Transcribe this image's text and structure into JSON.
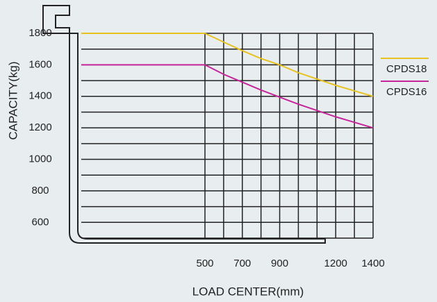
{
  "chart_data": {
    "type": "line",
    "x_label": "LOAD CENTER(mm)",
    "y_label": "CAPACITY(kg)",
    "x": [
      500,
      600,
      700,
      800,
      900,
      1000,
      1100,
      1200,
      1300,
      1400
    ],
    "series": [
      {
        "name": "CPDS18",
        "color": "#e8c21e",
        "values": [
          1800,
          1745,
          1690,
          1640,
          1600,
          1550,
          1510,
          1470,
          1435,
          1400
        ]
      },
      {
        "name": "CPDS16",
        "color": "#c6249a",
        "values": [
          1600,
          1540,
          1490,
          1440,
          1395,
          1350,
          1310,
          1270,
          1235,
          1200
        ]
      }
    ],
    "xlim": [
      500,
      1400
    ],
    "ylim": [
      500,
      1800
    ],
    "xticks": [
      500,
      700,
      900,
      1200,
      1400
    ],
    "yticks": [
      600,
      800,
      1000,
      1200,
      1400,
      1600,
      1800
    ],
    "ygrid_lines": [
      500,
      600,
      700,
      800,
      900,
      1000,
      1100,
      1200,
      1300,
      1400,
      1500,
      1600,
      1700,
      1800
    ],
    "grid": true,
    "legend": "right"
  }
}
